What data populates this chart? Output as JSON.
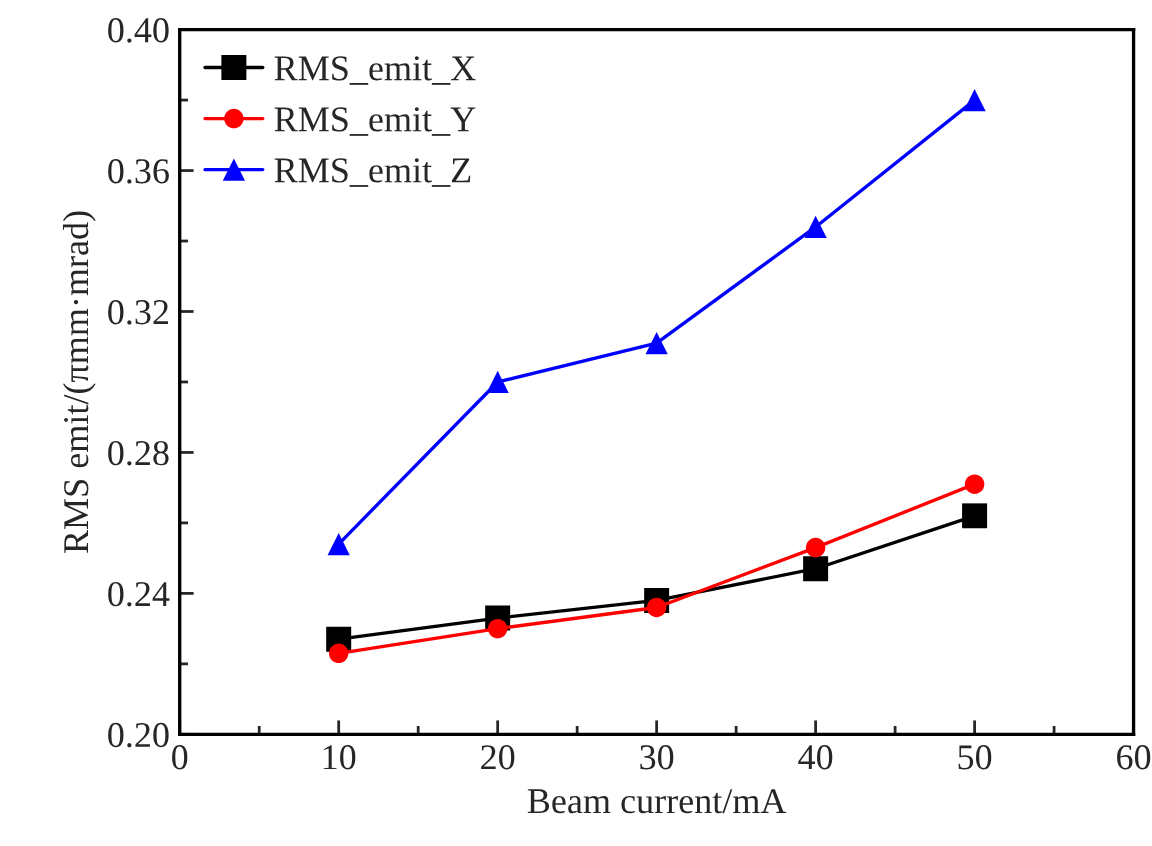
{
  "chart_data": {
    "type": "line",
    "xlabel": "Beam current/mA",
    "ylabel": "RMS emit/(πmm·mrad)",
    "x": [
      10,
      20,
      30,
      40,
      50
    ],
    "series": [
      {
        "name": "RMS_emit_X",
        "color": "#000000",
        "marker": "square",
        "values": [
          0.227,
          0.233,
          0.238,
          0.247,
          0.262
        ]
      },
      {
        "name": "RMS_emit_Y",
        "color": "#ff0000",
        "marker": "circle",
        "values": [
          0.223,
          0.23,
          0.236,
          0.253,
          0.271
        ]
      },
      {
        "name": "RMS_emit_Z",
        "color": "#0000ff",
        "marker": "triangle",
        "values": [
          0.254,
          0.3,
          0.311,
          0.344,
          0.38
        ]
      }
    ],
    "xlim": [
      0,
      60
    ],
    "xticks": [
      0,
      10,
      20,
      30,
      40,
      50,
      60
    ],
    "ylim": [
      0.2,
      0.4
    ],
    "yticks": [
      {
        "value": 0.2,
        "label": "0.20"
      },
      {
        "value": 0.24,
        "label": "0.24"
      },
      {
        "value": 0.28,
        "label": "0.28"
      },
      {
        "value": 0.32,
        "label": "0.32"
      },
      {
        "value": 0.36,
        "label": "0.36"
      },
      {
        "value": 0.4,
        "label": "0.40"
      }
    ],
    "grid": false,
    "legend": "top left",
    "line_style": "solid"
  }
}
